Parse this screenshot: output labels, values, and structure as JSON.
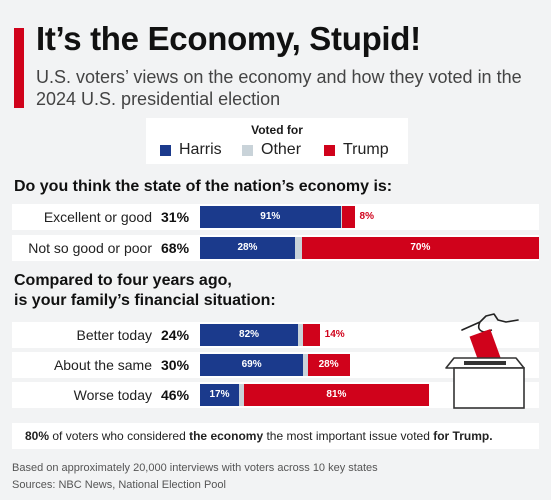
{
  "title": "It’s the Economy, Stupid!",
  "subtitle": "U.S. voters’ views on the economy and how they voted in the 2024 U.S. presidential election",
  "legend": {
    "title": "Voted for",
    "items": [
      {
        "label": "Harris",
        "color": "#1b3a8c"
      },
      {
        "label": "Other",
        "color": "#c9d3d9"
      },
      {
        "label": "Trump",
        "color": "#d0021b"
      }
    ]
  },
  "chart_data": [
    {
      "type": "bar",
      "title": "Do you think the state of the nation’s economy is:",
      "categories": [
        "Excellent or good",
        "Not so good or poor"
      ],
      "totals": [
        "31%",
        "68%"
      ],
      "total_values": [
        31,
        68
      ],
      "series": [
        {
          "name": "Harris",
          "values": [
            91,
            28
          ],
          "labels": [
            "91%",
            "28%"
          ]
        },
        {
          "name": "Other",
          "values": [
            1,
            2
          ],
          "labels": [
            "",
            ""
          ]
        },
        {
          "name": "Trump",
          "values": [
            8,
            70
          ],
          "labels": [
            "8%",
            "70%"
          ]
        }
      ]
    },
    {
      "type": "bar",
      "title": "Compared to four years ago, is your family’s financial situation:",
      "title_lines": [
        "Compared to four years ago,",
        "is your family’s financial situation:"
      ],
      "categories": [
        "Better today",
        "About the same",
        "Worse today"
      ],
      "totals": [
        "24%",
        "30%",
        "46%"
      ],
      "total_values": [
        24,
        30,
        46
      ],
      "series": [
        {
          "name": "Harris",
          "values": [
            82,
            69,
            17
          ],
          "labels": [
            "82%",
            "69%",
            "17%"
          ]
        },
        {
          "name": "Other",
          "values": [
            4,
            3,
            2
          ],
          "labels": [
            "",
            "",
            ""
          ]
        },
        {
          "name": "Trump",
          "values": [
            14,
            28,
            81
          ],
          "labels": [
            "14%",
            "28%",
            "81%"
          ]
        }
      ]
    }
  ],
  "note": {
    "part1": "80%",
    "part2": " of voters who considered ",
    "part3": "the economy",
    "part4": " the most important issue voted ",
    "part5": "for Trump."
  },
  "footnotes": {
    "basis": "Based on approximately 20,000 interviews with voters across 10 key states",
    "sources": "Sources: NBC News, National Election Pool"
  },
  "icons": {
    "ballot": "ballot-box-icon"
  }
}
